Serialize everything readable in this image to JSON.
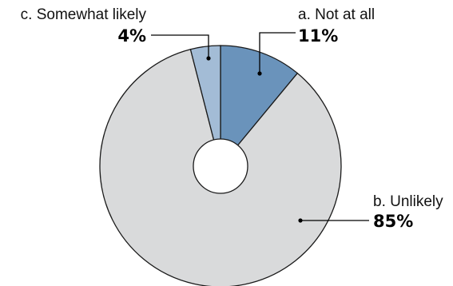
{
  "chart_data": {
    "type": "pie",
    "variant": "donut",
    "title": "",
    "slices": [
      {
        "letter": "a.",
        "label": "Not at all",
        "value": 11,
        "display": "11%",
        "color": "#6a93bb"
      },
      {
        "letter": "b.",
        "label": "Unlikely",
        "value": 85,
        "display": "85%",
        "color": "#d9dadb"
      },
      {
        "letter": "c.",
        "label": "Somewhat likely",
        "value": 4,
        "display": "4%",
        "color": "#a3bcd6"
      }
    ],
    "start": "12 o'clock",
    "direction": "clockwise",
    "labels": {
      "a": "a. Not at all",
      "b": "b. Unlikely",
      "c": "c. Somewhat likely"
    }
  }
}
